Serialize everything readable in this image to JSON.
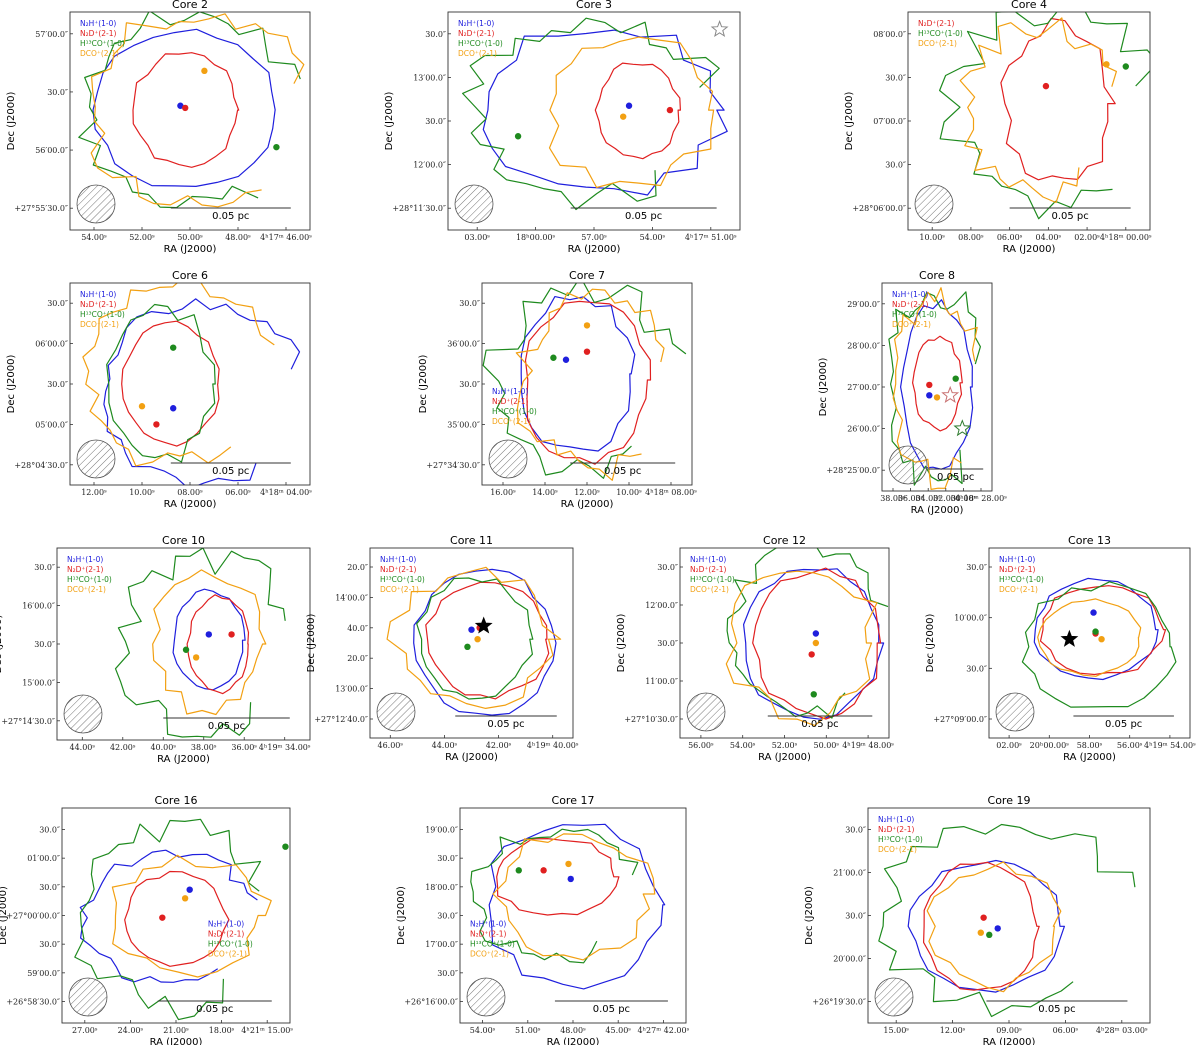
{
  "figure": {
    "xlabel": "RA (J2000)",
    "ylabel": "Dec (J2000)",
    "scale_label": "0.05 pc",
    "colors": {
      "n2hp": "#1f1fdd",
      "n2dp": "#e02020",
      "h13cop": "#1e8a1e",
      "dcop": "#f2a012"
    },
    "legend_default": [
      "N₂H⁺(1-0)",
      "N₂D⁺(2-1)",
      "H¹³CO⁺(1-0)",
      "DCO⁺(2-1)"
    ]
  },
  "chart_data": [
    {
      "type": "contour",
      "title": "Core 2",
      "legend_keys": [
        "n2hp",
        "n2dp",
        "h13cop",
        "dcop"
      ],
      "legend_pos": "top-left",
      "xticks": [
        "54.00ˢ",
        "52.00ˢ",
        "50.00ˢ",
        "48.00ˢ",
        "4ʰ17ᵐ 46.00ˢ"
      ],
      "yticks": [
        "+27°55′30.0″",
        "56′00.0″",
        "30.0″",
        "57′00.0″"
      ],
      "peaks": [
        {
          "key": "n2hp",
          "x": 0.46,
          "y": 0.57
        },
        {
          "key": "n2dp",
          "x": 0.48,
          "y": 0.56
        },
        {
          "key": "h13cop",
          "x": 0.86,
          "y": 0.38
        },
        {
          "key": "dcop",
          "x": 0.56,
          "y": 0.73
        }
      ],
      "stars": []
    },
    {
      "type": "contour",
      "title": "Core 3",
      "legend_keys": [
        "n2hp",
        "n2dp",
        "h13cop",
        "dcop"
      ],
      "legend_pos": "top-left",
      "xticks": [
        "03.00ˢ",
        "18ʰ00.00ˢ",
        "57.00ˢ",
        "54.00ˢ",
        "4ʰ17ᵐ 51.00ˢ"
      ],
      "yticks": [
        "+28°11′30.0″",
        "12′00.0″",
        "30.0″",
        "13′00.0″",
        "30.0″"
      ],
      "peaks": [
        {
          "key": "n2hp",
          "x": 0.62,
          "y": 0.57
        },
        {
          "key": "n2dp",
          "x": 0.76,
          "y": 0.55
        },
        {
          "key": "h13cop",
          "x": 0.24,
          "y": 0.43
        },
        {
          "key": "dcop",
          "x": 0.6,
          "y": 0.52
        }
      ],
      "stars": [
        {
          "x": 0.93,
          "y": 0.92,
          "color": "#888888"
        }
      ]
    },
    {
      "type": "contour",
      "title": "Core 4",
      "legend_keys": [
        "n2dp",
        "h13cop",
        "dcop"
      ],
      "legend_pos": "top-left",
      "xticks": [
        "10.00ˢ",
        "08.00ˢ",
        "06.00ˢ",
        "04.00ˢ",
        "02.00ˢ",
        "4ʰ18ᵐ 00.00ˢ"
      ],
      "yticks": [
        "+28°06′00.0″",
        "30.0″",
        "07′00.0″",
        "30.0″",
        "08′00.0″"
      ],
      "peaks": [
        {
          "key": "n2dp",
          "x": 0.57,
          "y": 0.66
        },
        {
          "key": "h13cop",
          "x": 0.9,
          "y": 0.75
        },
        {
          "key": "dcop",
          "x": 0.82,
          "y": 0.76
        }
      ],
      "stars": []
    },
    {
      "type": "contour",
      "title": "Core 6",
      "legend_keys": [
        "n2hp",
        "n2dp",
        "h13cop",
        "dcop"
      ],
      "legend_pos": "top-left",
      "xticks": [
        "12.00ˢ",
        "10.00ˢ",
        "08.00ˢ",
        "06.00ˢ",
        "4ʰ18ᵐ 04.00ˢ"
      ],
      "yticks": [
        "+28°04′30.0″",
        "05′00.0″",
        "30.0″",
        "06′00.0″",
        "30.0″"
      ],
      "peaks": [
        {
          "key": "n2hp",
          "x": 0.43,
          "y": 0.38
        },
        {
          "key": "n2dp",
          "x": 0.36,
          "y": 0.3
        },
        {
          "key": "h13cop",
          "x": 0.43,
          "y": 0.68
        },
        {
          "key": "dcop",
          "x": 0.3,
          "y": 0.39
        }
      ],
      "stars": []
    },
    {
      "type": "contour",
      "title": "Core 7",
      "legend_keys": [
        "n2hp",
        "n2dp",
        "h13cop",
        "dcop"
      ],
      "legend_pos": "bottom-left",
      "xticks": [
        "16.00ˢ",
        "14.00ˢ",
        "12.00ˢ",
        "10.00ˢ",
        "4ʰ18ᵐ 08.00ˢ"
      ],
      "yticks": [
        "+27°34′30.0″",
        "35′00.0″",
        "30.0″",
        "36′00.0″",
        "30.0″"
      ],
      "peaks": [
        {
          "key": "n2hp",
          "x": 0.4,
          "y": 0.62
        },
        {
          "key": "n2dp",
          "x": 0.5,
          "y": 0.66
        },
        {
          "key": "h13cop",
          "x": 0.34,
          "y": 0.63
        },
        {
          "key": "dcop",
          "x": 0.5,
          "y": 0.79
        }
      ],
      "stars": []
    },
    {
      "type": "contour",
      "title": "Core 8",
      "legend_keys": [
        "n2hp",
        "n2dp",
        "h13cop",
        "dcop"
      ],
      "legend_pos": "top-left",
      "xticks": [
        "38.00ˢ",
        "36.00ˢ",
        "34.00ˢ",
        "32.00ˢ",
        "30.00ˢ",
        "4ʰ18ᵐ 28.00ˢ"
      ],
      "yticks": [
        "+28°25′00.0″",
        "26′00.0″",
        "27′00.0″",
        "28′00.0″",
        "29′00.0″"
      ],
      "peaks": [
        {
          "key": "n2hp",
          "x": 0.43,
          "y": 0.46
        },
        {
          "key": "n2dp",
          "x": 0.43,
          "y": 0.51
        },
        {
          "key": "h13cop",
          "x": 0.67,
          "y": 0.54
        },
        {
          "key": "dcop",
          "x": 0.5,
          "y": 0.45
        }
      ],
      "stars": [
        {
          "x": 0.62,
          "y": 0.46,
          "color": "#c87070"
        },
        {
          "x": 0.73,
          "y": 0.3,
          "color": "#2e7a2e"
        }
      ]
    },
    {
      "type": "contour",
      "title": "Core 10",
      "legend_keys": [
        "n2hp",
        "n2dp",
        "h13cop",
        "dcop"
      ],
      "legend_pos": "top-left",
      "xticks": [
        "44.00ˢ",
        "42.00ˢ",
        "40.00ˢ",
        "38.00ˢ",
        "36.00ˢ",
        "4ʰ19ᵐ 34.00ˢ"
      ],
      "yticks": [
        "+27°14′30.0″",
        "15′00.0″",
        "30.0″",
        "16′00.0″",
        "30.0″"
      ],
      "peaks": [
        {
          "key": "n2hp",
          "x": 0.6,
          "y": 0.55
        },
        {
          "key": "n2dp",
          "x": 0.69,
          "y": 0.55
        },
        {
          "key": "h13cop",
          "x": 0.51,
          "y": 0.47
        },
        {
          "key": "dcop",
          "x": 0.55,
          "y": 0.43
        }
      ],
      "stars": []
    },
    {
      "type": "contour",
      "title": "Core 11",
      "legend_keys": [
        "n2hp",
        "n2dp",
        "h13cop",
        "dcop"
      ],
      "legend_pos": "top-left",
      "xticks": [
        "46.00ˢ",
        "44.00ˢ",
        "42.00ˢ",
        "4ʰ19ᵐ 40.00ˢ"
      ],
      "yticks": [
        "+27°12′40.0″",
        "13′00.0″",
        "20.0″",
        "40.0″",
        "14′00.0″",
        "20.0″"
      ],
      "peaks": [
        {
          "key": "n2hp",
          "x": 0.5,
          "y": 0.57
        },
        {
          "key": "n2dp",
          "x": 0.54,
          "y": 0.58
        },
        {
          "key": "h13cop",
          "x": 0.48,
          "y": 0.48
        },
        {
          "key": "dcop",
          "x": 0.53,
          "y": 0.52
        }
      ],
      "stars": [
        {
          "x": 0.56,
          "y": 0.59,
          "color": "#000000"
        }
      ]
    },
    {
      "type": "contour",
      "title": "Core 12",
      "legend_keys": [
        "n2hp",
        "n2dp",
        "h13cop",
        "dcop"
      ],
      "legend_pos": "top-left",
      "xticks": [
        "56.00ˢ",
        "54.00ˢ",
        "52.00ˢ",
        "50.00ˢ",
        "4ʰ19ᵐ 48.00ˢ"
      ],
      "yticks": [
        "+27°10′30.0″",
        "11′00.0″",
        "30.0″",
        "12′00.0″",
        "30.0″"
      ],
      "peaks": [
        {
          "key": "n2hp",
          "x": 0.65,
          "y": 0.55
        },
        {
          "key": "n2dp",
          "x": 0.63,
          "y": 0.44
        },
        {
          "key": "h13cop",
          "x": 0.64,
          "y": 0.23
        },
        {
          "key": "dcop",
          "x": 0.65,
          "y": 0.5
        }
      ],
      "stars": []
    },
    {
      "type": "contour",
      "title": "Core 13",
      "legend_keys": [
        "n2hp",
        "n2dp",
        "h13cop",
        "dcop"
      ],
      "legend_pos": "top-left",
      "xticks": [
        "02.00ˢ",
        "20ʰ00.00ˢ",
        "58.00ˢ",
        "56.00ˢ",
        "4ʰ19ᵐ 54.00ˢ"
      ],
      "yticks": [
        "+27°09′00.0″",
        "30.0″",
        "10′00.0″",
        "30.0″"
      ],
      "peaks": [
        {
          "key": "n2hp",
          "x": 0.52,
          "y": 0.66
        },
        {
          "key": "n2dp",
          "x": 0.53,
          "y": 0.55
        },
        {
          "key": "h13cop",
          "x": 0.53,
          "y": 0.56
        },
        {
          "key": "dcop",
          "x": 0.56,
          "y": 0.52
        }
      ],
      "stars": [
        {
          "x": 0.4,
          "y": 0.52,
          "color": "#000000"
        }
      ]
    },
    {
      "type": "contour",
      "title": "Core 16",
      "legend_keys": [
        "n2hp",
        "n2dp",
        "h13cop",
        "dcop"
      ],
      "legend_pos": "bottom-right",
      "xticks": [
        "27.00ˢ",
        "24.00ˢ",
        "21.00ˢ",
        "18.00ˢ",
        "4ʰ21ᵐ 15.00ˢ"
      ],
      "yticks": [
        "+26°58′30.0″",
        "59′00.0″",
        "30.0″",
        "+27°00′00.0″",
        "30.0″",
        "01′00.0″",
        "30.0″"
      ],
      "peaks": [
        {
          "key": "n2hp",
          "x": 0.56,
          "y": 0.62
        },
        {
          "key": "n2dp",
          "x": 0.44,
          "y": 0.49
        },
        {
          "key": "h13cop",
          "x": 0.98,
          "y": 0.82
        },
        {
          "key": "dcop",
          "x": 0.54,
          "y": 0.58
        }
      ],
      "stars": []
    },
    {
      "type": "contour",
      "title": "Core 17",
      "legend_keys": [
        "n2hp",
        "n2dp",
        "h13cop",
        "dcop"
      ],
      "legend_pos": "bottom-left",
      "xticks": [
        "54.00ˢ",
        "51.00ˢ",
        "48.00ˢ",
        "45.00ˢ",
        "4ʰ27ᵐ 42.00ˢ"
      ],
      "yticks": [
        "+26°16′00.0″",
        "30.0″",
        "17′00.0″",
        "30.0″",
        "18′00.0″",
        "30.0″",
        "19′00.0″"
      ],
      "peaks": [
        {
          "key": "n2hp",
          "x": 0.49,
          "y": 0.67
        },
        {
          "key": "n2dp",
          "x": 0.37,
          "y": 0.71
        },
        {
          "key": "h13cop",
          "x": 0.26,
          "y": 0.71
        },
        {
          "key": "dcop",
          "x": 0.48,
          "y": 0.74
        }
      ],
      "stars": []
    },
    {
      "type": "contour",
      "title": "Core 19",
      "legend_keys": [
        "n2hp",
        "n2dp",
        "h13cop",
        "dcop"
      ],
      "legend_pos": "top-left",
      "xticks": [
        "15.00ˢ",
        "12.00ˢ",
        "09.00ˢ",
        "06.00ˢ",
        "4ʰ28ᵐ 03.00ˢ"
      ],
      "yticks": [
        "+26°19′30.0″",
        "20′00.0″",
        "30.0″",
        "21′00.0″",
        "30.0″"
      ],
      "peaks": [
        {
          "key": "n2hp",
          "x": 0.46,
          "y": 0.44
        },
        {
          "key": "n2dp",
          "x": 0.41,
          "y": 0.49
        },
        {
          "key": "h13cop",
          "x": 0.43,
          "y": 0.41
        },
        {
          "key": "dcop",
          "x": 0.4,
          "y": 0.42
        }
      ],
      "stars": []
    }
  ]
}
